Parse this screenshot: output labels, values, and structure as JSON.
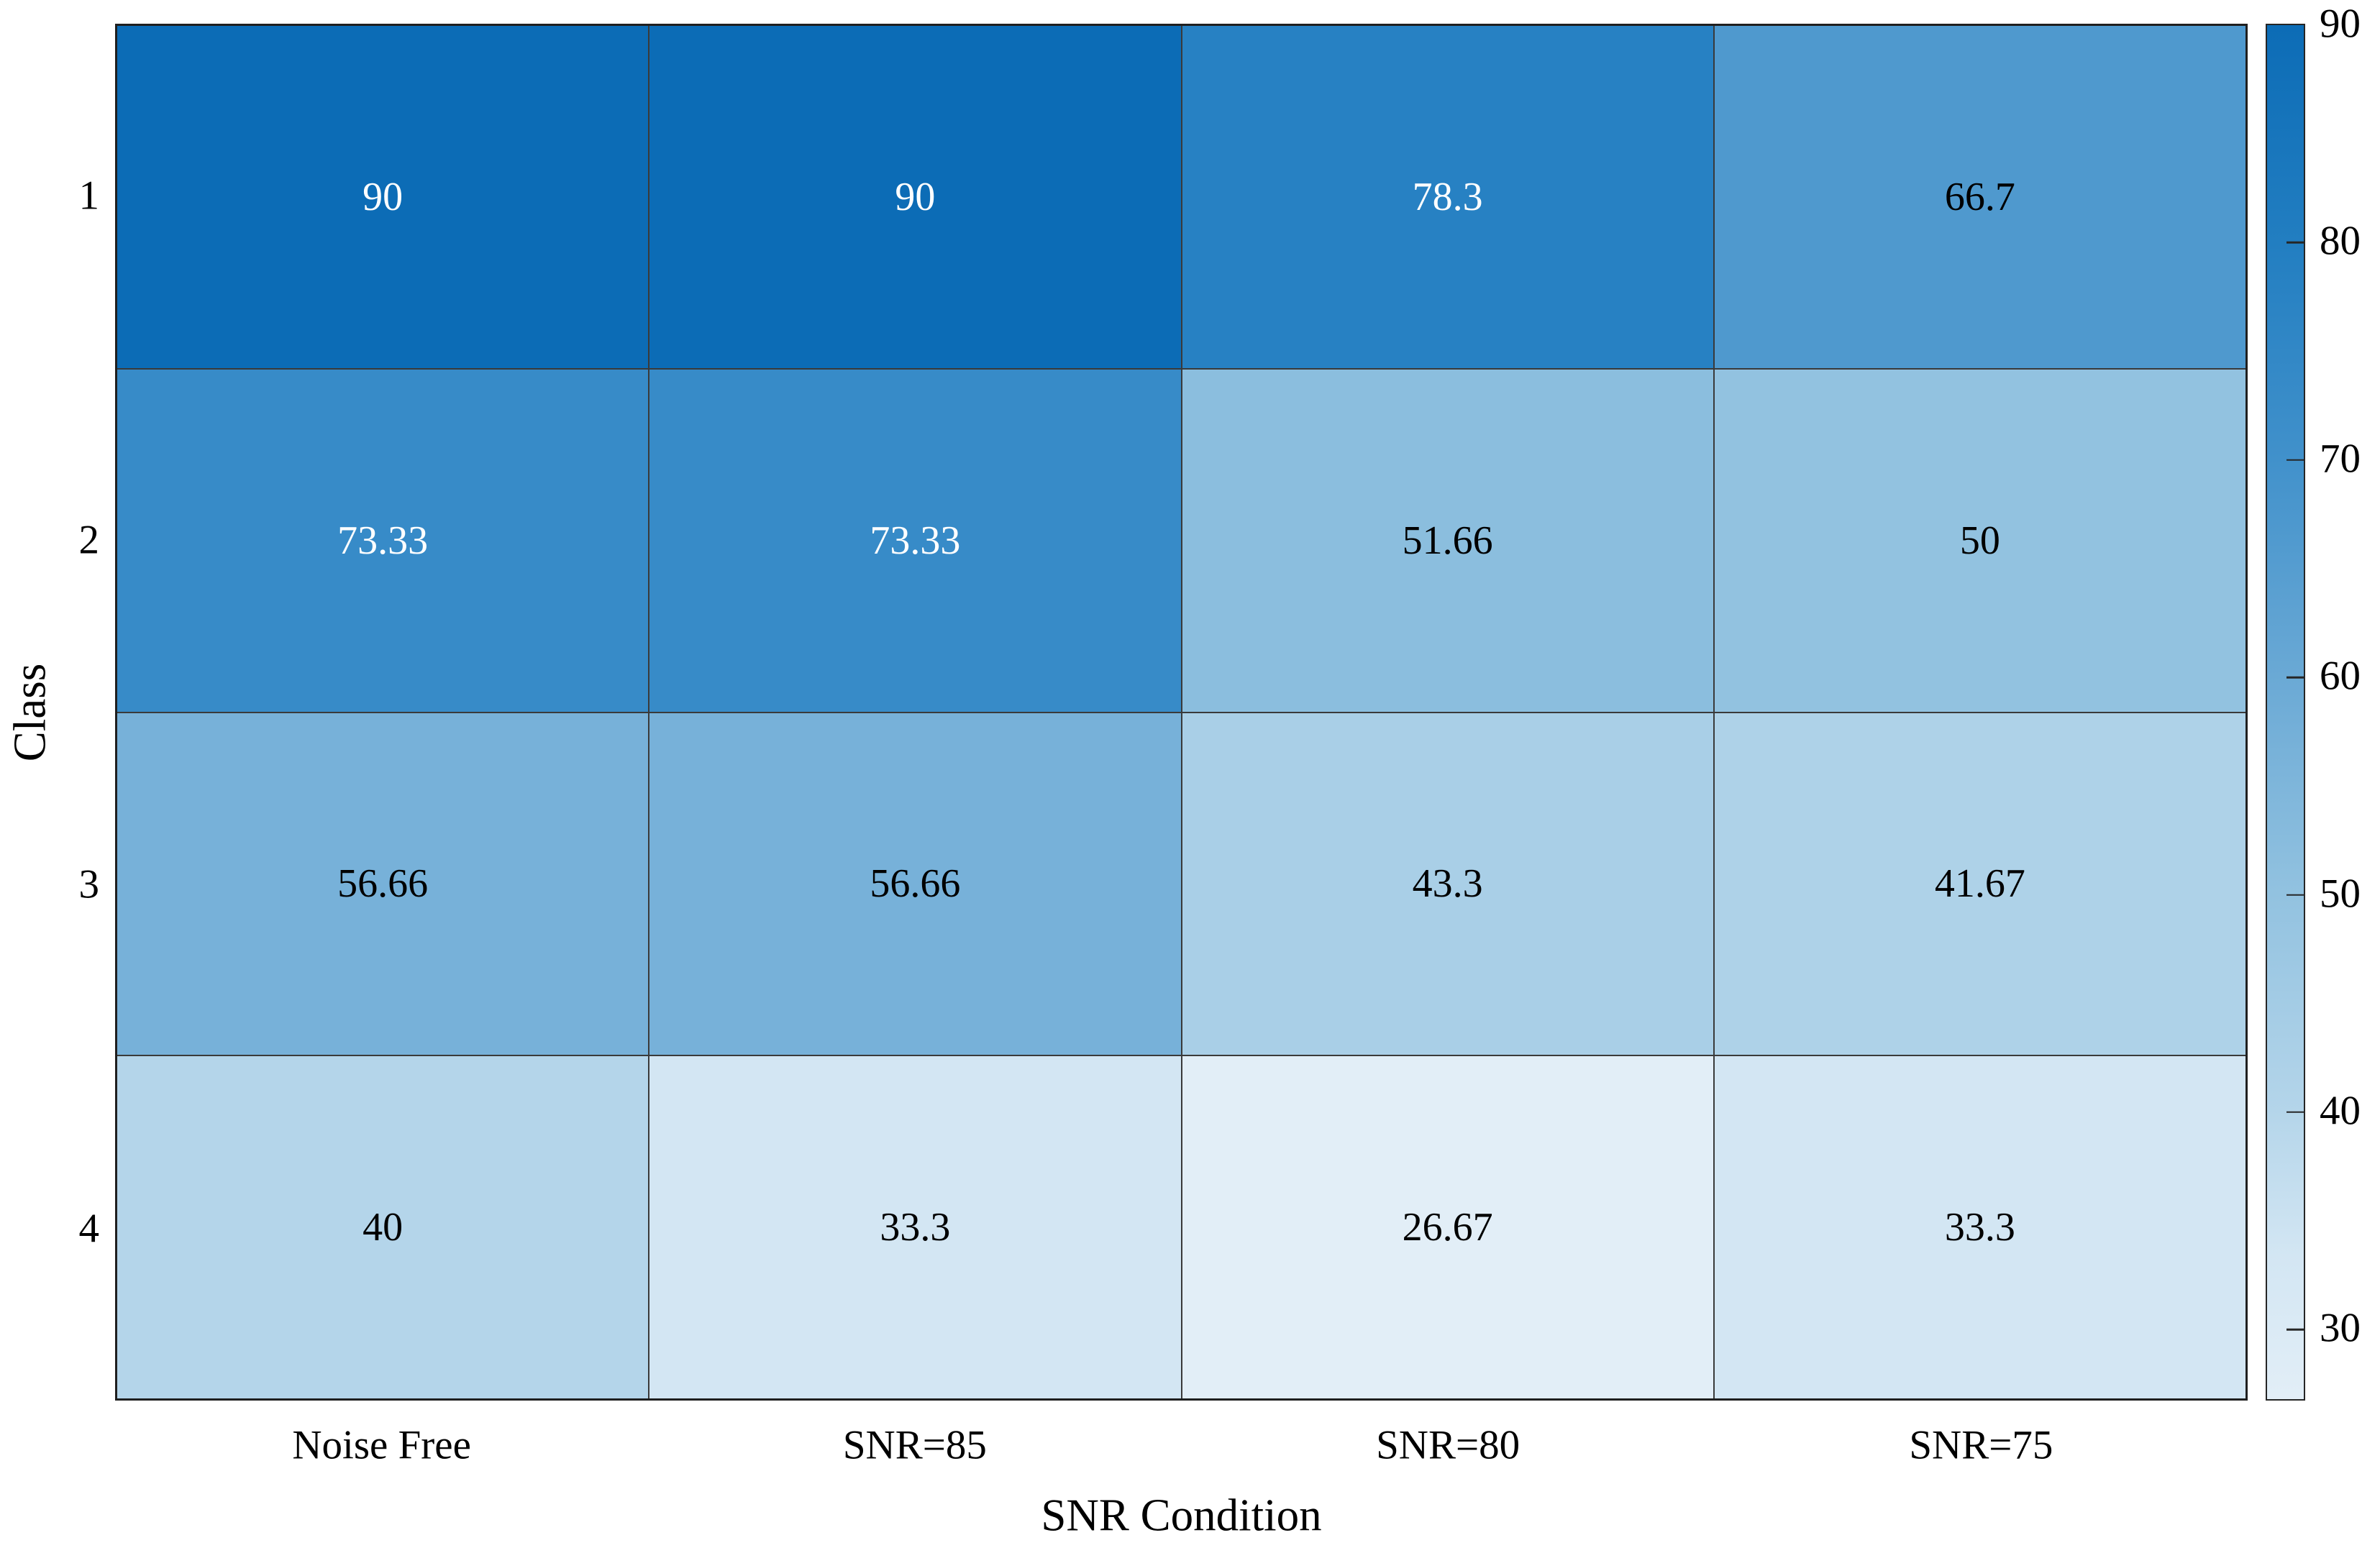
{
  "chart_data": {
    "type": "heatmap",
    "title": "",
    "xlabel": "SNR Condition",
    "ylabel": "Class",
    "x_categories": [
      "Noise Free",
      "SNR=85",
      "SNR=80",
      "SNR=75"
    ],
    "y_categories": [
      "1",
      "2",
      "3",
      "4"
    ],
    "values": [
      [
        90,
        90,
        78.3,
        66.7
      ],
      [
        73.33,
        73.33,
        51.66,
        50
      ],
      [
        56.66,
        56.66,
        43.3,
        41.67
      ],
      [
        40,
        33.3,
        26.67,
        33.3
      ]
    ],
    "cell_labels": [
      [
        "90",
        "90",
        "78.3",
        "66.7"
      ],
      [
        "73.33",
        "73.33",
        "51.66",
        "50"
      ],
      [
        "56.66",
        "56.66",
        "43.3",
        "41.67"
      ],
      [
        "40",
        "33.3",
        "26.67",
        "33.3"
      ]
    ],
    "colorbar_ticks": [
      90,
      80,
      70,
      60,
      50,
      40,
      30
    ],
    "colorbar_tick_labels": [
      "90",
      "80",
      "70",
      "60",
      "50",
      "40",
      "30"
    ],
    "color_scale": {
      "min": 26.67,
      "max": 90,
      "anchors": [
        {
          "v": 26.67,
          "c": "#e2eef7"
        },
        {
          "v": 33.3,
          "c": "#d3e6f3"
        },
        {
          "v": 40,
          "c": "#b4d5ea"
        },
        {
          "v": 50,
          "c": "#92c2e0"
        },
        {
          "v": 60,
          "c": "#6aa9d5"
        },
        {
          "v": 70,
          "c": "#4191cb"
        },
        {
          "v": 80,
          "c": "#227ec1"
        },
        {
          "v": 90,
          "c": "#0c6cb6"
        }
      ]
    },
    "cell_text_colors": {
      "light": "#ffffff",
      "dark": "#000000",
      "light_text_threshold": 70
    },
    "grid": "on",
    "legend_position": "colorbar-right"
  }
}
